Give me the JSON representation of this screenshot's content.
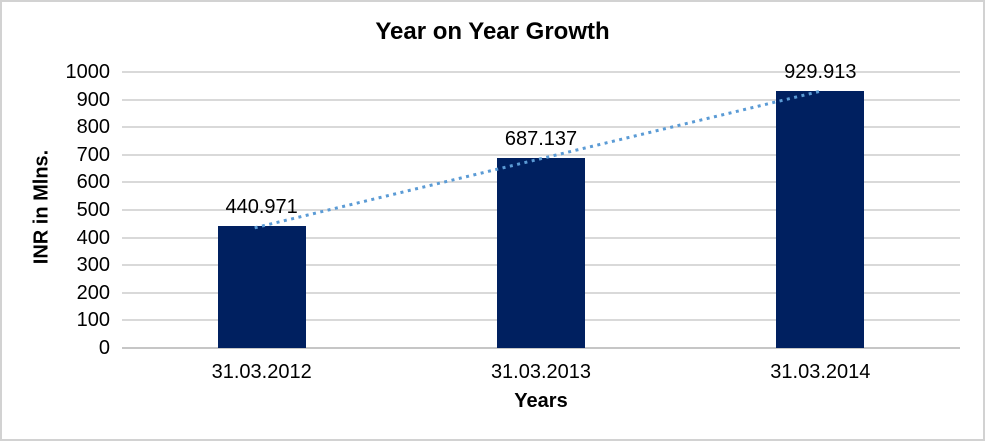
{
  "window": {
    "background": "#ffffff",
    "border_color": "#d2d2d2"
  },
  "chart_data": {
    "type": "bar",
    "title": "Year on Year Growth",
    "xlabel": "Years",
    "ylabel": "INR in Mlns.",
    "categories": [
      "31.03.2012",
      "31.03.2013",
      "31.03.2014"
    ],
    "values": [
      440.971,
      687.137,
      929.913
    ],
    "data_labels": [
      "440.971",
      "687.137",
      "929.913"
    ],
    "ytick_labels": [
      "0",
      "100",
      "200",
      "300",
      "400",
      "500",
      "600",
      "700",
      "800",
      "900",
      "1000"
    ],
    "ylim": [
      0,
      1000
    ],
    "ytick_step": 100,
    "grid": true,
    "legend_position": "none",
    "bar_color": "#002060",
    "trendline": {
      "type": "linear",
      "style": "dotted",
      "color": "#5b9bd5"
    },
    "gridline_color": "#d9d9d9",
    "axis_line_color": "#c6c6c6",
    "text_color": "#000000"
  }
}
